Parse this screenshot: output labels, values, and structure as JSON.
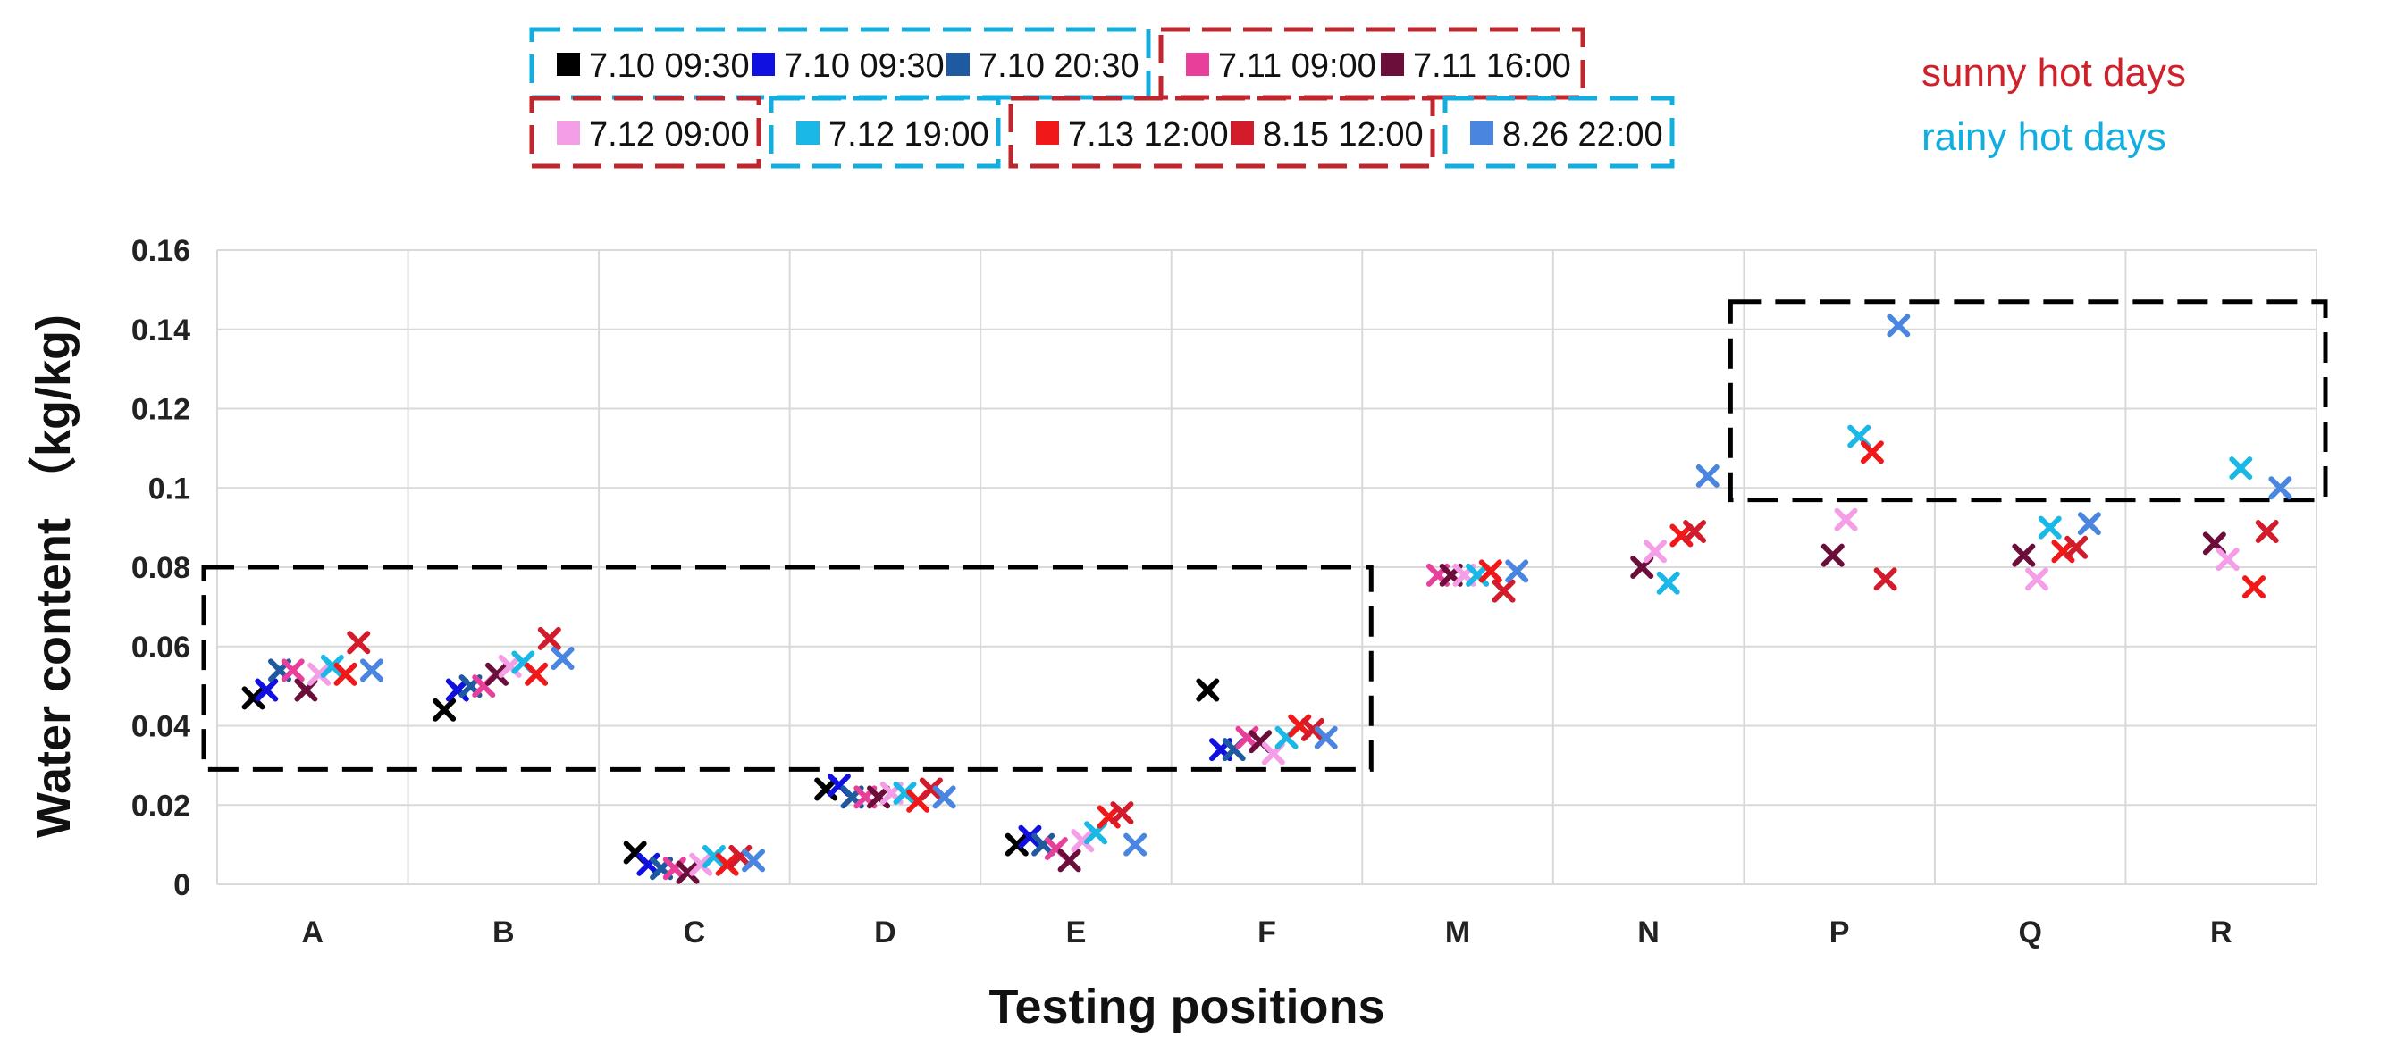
{
  "chart_data": {
    "type": "scatter",
    "title": "",
    "xlabel": "Testing positions",
    "ylabel": "Water content  （kg/kg)",
    "categories": [
      "A",
      "B",
      "C",
      "D",
      "E",
      "F",
      "M",
      "N",
      "P",
      "Q",
      "R"
    ],
    "ylim": [
      0,
      0.16
    ],
    "yticks": [
      0,
      0.02,
      0.04,
      0.06,
      0.08,
      0.1,
      0.12,
      0.14,
      0.16
    ],
    "ytick_labels": [
      "0",
      "0.02",
      "0.04",
      "0.06",
      "0.08",
      "0.1",
      "0.12",
      "0.14",
      "0.16"
    ],
    "grid": true,
    "legend_position": "top",
    "series": [
      {
        "name": "7.10 09:30",
        "color": "#000000",
        "group": "rainy",
        "values": [
          0.047,
          0.044,
          0.008,
          0.024,
          0.01,
          0.049,
          null,
          null,
          null,
          null,
          null
        ]
      },
      {
        "name": "7.10 09:30",
        "color": "#1010e0",
        "group": "rainy",
        "values": [
          0.049,
          0.049,
          0.005,
          0.025,
          0.012,
          0.034,
          null,
          null,
          null,
          null,
          null
        ]
      },
      {
        "name": "7.10 20:30",
        "color": "#1f5aa0",
        "group": "rainy",
        "values": [
          0.054,
          0.05,
          0.004,
          0.022,
          0.01,
          0.034,
          null,
          null,
          null,
          null,
          null
        ]
      },
      {
        "name": "7.11 09:00",
        "color": "#e8409a",
        "group": "sunny",
        "values": [
          0.054,
          0.05,
          0.004,
          0.022,
          0.009,
          0.037,
          0.078,
          null,
          null,
          null,
          null
        ]
      },
      {
        "name": "7.11 16:00",
        "color": "#6b0f3a",
        "group": "sunny",
        "values": [
          0.049,
          0.053,
          0.003,
          0.022,
          0.006,
          0.036,
          0.078,
          0.08,
          0.083,
          0.083,
          0.086
        ]
      },
      {
        "name": "7.12 09:00",
        "color": "#f59ee8",
        "group": "sunny",
        "values": [
          0.053,
          0.055,
          0.005,
          0.023,
          0.011,
          0.033,
          0.078,
          0.084,
          0.092,
          0.077,
          0.082
        ]
      },
      {
        "name": "7.12 19:00",
        "color": "#19b8e6",
        "group": "rainy",
        "values": [
          0.055,
          0.056,
          0.007,
          0.023,
          0.013,
          0.037,
          0.078,
          0.076,
          0.113,
          0.09,
          0.105
        ]
      },
      {
        "name": "7.13 12:00",
        "color": "#f01818",
        "group": "sunny",
        "values": [
          0.053,
          0.053,
          0.005,
          0.021,
          0.017,
          0.04,
          0.079,
          0.088,
          0.109,
          0.084,
          0.075
        ]
      },
      {
        "name": "8.15 12:00",
        "color": "#d21c2c",
        "group": "sunny",
        "values": [
          0.061,
          0.062,
          0.007,
          0.024,
          0.018,
          0.039,
          0.074,
          0.089,
          0.077,
          0.085,
          0.089
        ]
      },
      {
        "name": "8.26 22:00",
        "color": "#4a86e0",
        "group": "rainy",
        "values": [
          0.054,
          0.057,
          0.006,
          0.022,
          0.01,
          0.037,
          0.079,
          0.103,
          0.141,
          0.091,
          0.1
        ]
      }
    ],
    "highlight_boxes": [
      {
        "x_from": "A",
        "x_to": "F",
        "y_from": 0.029,
        "y_to": 0.08,
        "style": "dashed",
        "color": "#000000"
      },
      {
        "x_from": "P",
        "x_to": "R",
        "y_from": 0.097,
        "y_to": 0.147,
        "style": "dashed",
        "color": "#000000"
      }
    ],
    "legend_groups": [
      {
        "group": "rainy",
        "color": "#12aee0",
        "series_index": [
          0,
          1,
          2
        ]
      },
      {
        "group": "sunny",
        "color": "#c0262e",
        "series_index": [
          3,
          4
        ]
      },
      {
        "group": "sunny",
        "color": "#c0262e",
        "series_index": [
          5
        ]
      },
      {
        "group": "rainy",
        "color": "#12aee0",
        "series_index": [
          6
        ]
      },
      {
        "group": "sunny",
        "color": "#c0262e",
        "series_index": [
          7,
          8
        ]
      },
      {
        "group": "rainy",
        "color": "#12aee0",
        "series_index": [
          9
        ]
      }
    ],
    "annotations": [
      {
        "text": "sunny hot days",
        "color": "#d0202a"
      },
      {
        "text": "rainy hot days",
        "color": "#12aee0"
      }
    ]
  }
}
